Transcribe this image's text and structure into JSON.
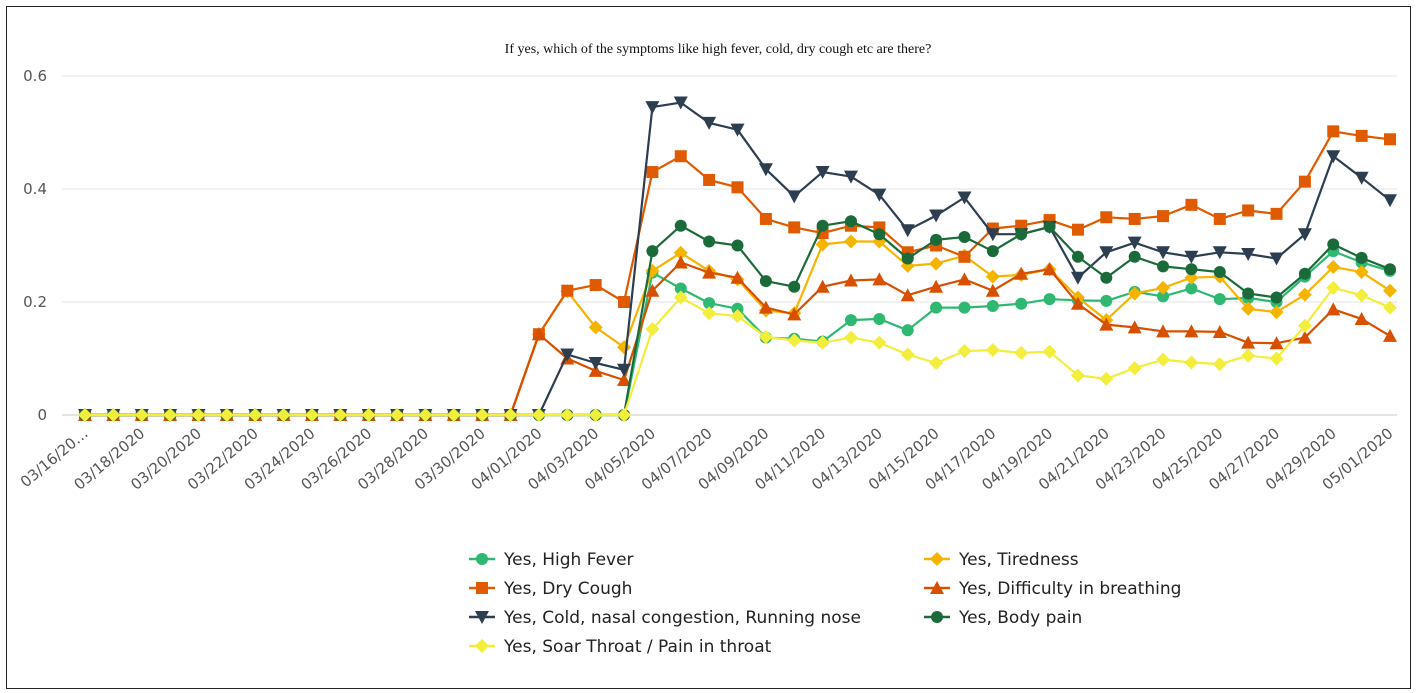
{
  "chart_data": {
    "type": "line",
    "title": "If yes, which of the symptoms like high fever, cold, dry cough etc are there?",
    "xlabel": "",
    "ylabel": "",
    "ylim": [
      0,
      0.6
    ],
    "yticks": [
      0,
      0.2,
      0.4,
      0.6
    ],
    "ytick_labels": [
      "0",
      "0.2",
      "0.4",
      "0.6"
    ],
    "grid": true,
    "legend_position": "bottom",
    "x": [
      "03/16/2020",
      "03/17/2020",
      "03/18/2020",
      "03/19/2020",
      "03/20/2020",
      "03/21/2020",
      "03/22/2020",
      "03/23/2020",
      "03/24/2020",
      "03/25/2020",
      "03/26/2020",
      "03/27/2020",
      "03/28/2020",
      "03/29/2020",
      "03/30/2020",
      "03/31/2020",
      "04/01/2020",
      "04/02/2020",
      "04/03/2020",
      "04/04/2020",
      "04/05/2020",
      "04/06/2020",
      "04/07/2020",
      "04/08/2020",
      "04/09/2020",
      "04/10/2020",
      "04/11/2020",
      "04/12/2020",
      "04/13/2020",
      "04/14/2020",
      "04/15/2020",
      "04/16/2020",
      "04/17/2020",
      "04/18/2020",
      "04/19/2020",
      "04/20/2020",
      "04/21/2020",
      "04/22/2020",
      "04/23/2020",
      "04/24/2020",
      "04/25/2020",
      "04/26/2020",
      "04/27/2020",
      "04/28/2020",
      "04/29/2020",
      "04/30/2020",
      "05/01/2020"
    ],
    "xtick_labels": [
      "03/16/20…",
      "03/18/2020",
      "03/20/2020",
      "03/22/2020",
      "03/24/2020",
      "03/26/2020",
      "03/28/2020",
      "03/30/2020",
      "04/01/2020",
      "04/03/2020",
      "04/05/2020",
      "04/07/2020",
      "04/09/2020",
      "04/11/2020",
      "04/13/2020",
      "04/15/2020",
      "04/17/2020",
      "04/19/2020",
      "04/21/2020",
      "04/23/2020",
      "04/25/2020",
      "04/27/2020",
      "04/29/2020",
      "05/01/2020"
    ],
    "series": [
      {
        "name": "Yes, High Fever",
        "color": "#2eb872",
        "marker": "circle",
        "values": [
          0,
          0,
          0,
          0,
          0,
          0,
          0,
          0,
          0,
          0,
          0,
          0,
          0,
          0,
          0,
          0,
          0,
          0,
          0,
          0,
          0.252,
          0.224,
          0.198,
          0.188,
          0.137,
          0.135,
          0.13,
          0.168,
          0.17,
          0.15,
          0.19,
          0.19,
          0.193,
          0.197,
          0.205,
          0.203,
          0.202,
          0.218,
          0.21,
          0.224,
          0.205,
          0.207,
          0.2,
          0.245,
          0.29,
          0.27,
          0.255
        ]
      },
      {
        "name": "Yes, Tiredness",
        "color": "#f4b400",
        "marker": "diamond",
        "values": [
          0,
          0,
          0,
          0,
          0,
          0,
          0,
          0,
          0,
          0,
          0,
          0,
          0,
          0,
          0,
          0,
          0.143,
          0.219,
          0.155,
          0.12,
          0.255,
          0.287,
          0.255,
          0.24,
          0.185,
          0.18,
          0.302,
          0.307,
          0.307,
          0.264,
          0.268,
          0.282,
          0.245,
          0.248,
          0.258,
          0.208,
          0.168,
          0.215,
          0.225,
          0.243,
          0.245,
          0.188,
          0.182,
          0.213,
          0.262,
          0.253,
          0.22
        ]
      },
      {
        "name": "Yes, Dry Cough",
        "color": "#e05a00",
        "marker": "square",
        "values": [
          0,
          0,
          0,
          0,
          0,
          0,
          0,
          0,
          0,
          0,
          0,
          0,
          0,
          0,
          0,
          0,
          0.143,
          0.22,
          0.23,
          0.2,
          0.43,
          0.458,
          0.416,
          0.403,
          0.347,
          0.332,
          0.322,
          0.335,
          0.332,
          0.288,
          0.3,
          0.28,
          0.33,
          0.335,
          0.345,
          0.328,
          0.35,
          0.347,
          0.352,
          0.372,
          0.347,
          0.362,
          0.356,
          0.413,
          0.502,
          0.494,
          0.488
        ]
      },
      {
        "name": "Yes, Difficulty in breathing",
        "color": "#d94f00",
        "marker": "triangle",
        "values": [
          0,
          0,
          0,
          0,
          0,
          0,
          0,
          0,
          0,
          0,
          0,
          0,
          0,
          0,
          0,
          0,
          0.143,
          0.1,
          0.078,
          0.062,
          0.22,
          0.27,
          0.252,
          0.243,
          0.19,
          0.178,
          0.227,
          0.238,
          0.24,
          0.212,
          0.227,
          0.24,
          0.22,
          0.25,
          0.258,
          0.197,
          0.16,
          0.155,
          0.148,
          0.148,
          0.147,
          0.128,
          0.127,
          0.137,
          0.187,
          0.17,
          0.14
        ]
      },
      {
        "name": "Yes, Cold, nasal congestion, Running nose",
        "color": "#2c3e50",
        "marker": "triangle-down",
        "values": [
          0,
          0,
          0,
          0,
          0,
          0,
          0,
          0,
          0,
          0,
          0,
          0,
          0,
          0,
          0,
          0,
          0,
          0.107,
          0.092,
          0.08,
          0.545,
          0.553,
          0.517,
          0.505,
          0.435,
          0.387,
          0.43,
          0.422,
          0.39,
          0.327,
          0.353,
          0.385,
          0.32,
          0.32,
          0.333,
          0.243,
          0.288,
          0.305,
          0.288,
          0.28,
          0.288,
          0.285,
          0.277,
          0.32,
          0.458,
          0.42,
          0.38
        ]
      },
      {
        "name": "Yes, Body pain",
        "color": "#1b6b3a",
        "marker": "circle",
        "values": [
          0,
          0,
          0,
          0,
          0,
          0,
          0,
          0,
          0,
          0,
          0,
          0,
          0,
          0,
          0,
          0,
          0,
          0,
          0,
          0,
          0.29,
          0.335,
          0.307,
          0.3,
          0.237,
          0.227,
          0.335,
          0.343,
          0.32,
          0.277,
          0.31,
          0.315,
          0.29,
          0.32,
          0.333,
          0.28,
          0.243,
          0.28,
          0.263,
          0.258,
          0.253,
          0.215,
          0.208,
          0.25,
          0.302,
          0.278,
          0.258
        ]
      },
      {
        "name": "Yes, Soar Throat / Pain in throat",
        "color": "#f2ee3b",
        "marker": "diamond",
        "values": [
          0,
          0,
          0,
          0,
          0,
          0,
          0,
          0,
          0,
          0,
          0,
          0,
          0,
          0,
          0,
          0,
          0,
          0,
          0,
          0,
          0.152,
          0.208,
          0.18,
          0.175,
          0.138,
          0.132,
          0.128,
          0.137,
          0.128,
          0.107,
          0.092,
          0.113,
          0.115,
          0.11,
          0.112,
          0.07,
          0.064,
          0.083,
          0.098,
          0.093,
          0.09,
          0.105,
          0.1,
          0.158,
          0.225,
          0.212,
          0.19
        ]
      }
    ]
  }
}
